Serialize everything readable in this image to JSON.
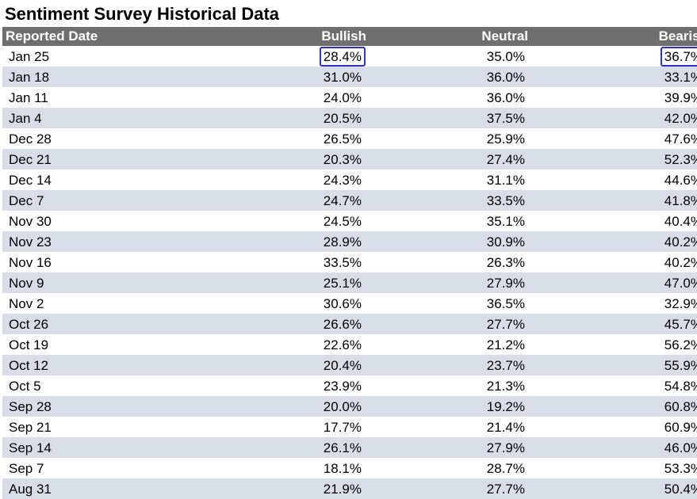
{
  "page": {
    "title": "Sentiment Survey Historical Data"
  },
  "table": {
    "headers": {
      "date": "Reported Date",
      "bullish": "Bullish",
      "neutral": "Neutral",
      "bearish": "Bearish"
    },
    "rows": [
      {
        "date": "Jan 25",
        "bullish": "28.4%",
        "neutral": "35.0%",
        "bearish": "36.7%"
      },
      {
        "date": "Jan 18",
        "bullish": "31.0%",
        "neutral": "36.0%",
        "bearish": "33.1%"
      },
      {
        "date": "Jan 11",
        "bullish": "24.0%",
        "neutral": "36.0%",
        "bearish": "39.9%"
      },
      {
        "date": "Jan 4",
        "bullish": "20.5%",
        "neutral": "37.5%",
        "bearish": "42.0%"
      },
      {
        "date": "Dec 28",
        "bullish": "26.5%",
        "neutral": "25.9%",
        "bearish": "47.6%"
      },
      {
        "date": "Dec 21",
        "bullish": "20.3%",
        "neutral": "27.4%",
        "bearish": "52.3%"
      },
      {
        "date": "Dec 14",
        "bullish": "24.3%",
        "neutral": "31.1%",
        "bearish": "44.6%"
      },
      {
        "date": "Dec 7",
        "bullish": "24.7%",
        "neutral": "33.5%",
        "bearish": "41.8%"
      },
      {
        "date": "Nov 30",
        "bullish": "24.5%",
        "neutral": "35.1%",
        "bearish": "40.4%"
      },
      {
        "date": "Nov 23",
        "bullish": "28.9%",
        "neutral": "30.9%",
        "bearish": "40.2%"
      },
      {
        "date": "Nov 16",
        "bullish": "33.5%",
        "neutral": "26.3%",
        "bearish": "40.2%"
      },
      {
        "date": "Nov 9",
        "bullish": "25.1%",
        "neutral": "27.9%",
        "bearish": "47.0%"
      },
      {
        "date": "Nov 2",
        "bullish": "30.6%",
        "neutral": "36.5%",
        "bearish": "32.9%"
      },
      {
        "date": "Oct 26",
        "bullish": "26.6%",
        "neutral": "27.7%",
        "bearish": "45.7%"
      },
      {
        "date": "Oct 19",
        "bullish": "22.6%",
        "neutral": "21.2%",
        "bearish": "56.2%"
      },
      {
        "date": "Oct 12",
        "bullish": "20.4%",
        "neutral": "23.7%",
        "bearish": "55.9%"
      },
      {
        "date": "Oct 5",
        "bullish": "23.9%",
        "neutral": "21.3%",
        "bearish": "54.8%"
      },
      {
        "date": "Sep 28",
        "bullish": "20.0%",
        "neutral": "19.2%",
        "bearish": "60.8%"
      },
      {
        "date": "Sep 21",
        "bullish": "17.7%",
        "neutral": "21.4%",
        "bearish": "60.9%"
      },
      {
        "date": "Sep 14",
        "bullish": "26.1%",
        "neutral": "27.9%",
        "bearish": "46.0%"
      },
      {
        "date": "Sep 7",
        "bullish": "18.1%",
        "neutral": "28.7%",
        "bearish": "53.3%"
      },
      {
        "date": "Aug 31",
        "bullish": "21.9%",
        "neutral": "27.7%",
        "bearish": "50.4%"
      }
    ],
    "highlighted_cells": [
      {
        "row": 0,
        "column": "bullish"
      },
      {
        "row": 0,
        "column": "bearish"
      }
    ]
  },
  "colors": {
    "header_background": "#6f6f6f",
    "header_text": "#ffffff",
    "stripe_background": "#d9dde8",
    "highlight_border": "#2a34c9"
  }
}
